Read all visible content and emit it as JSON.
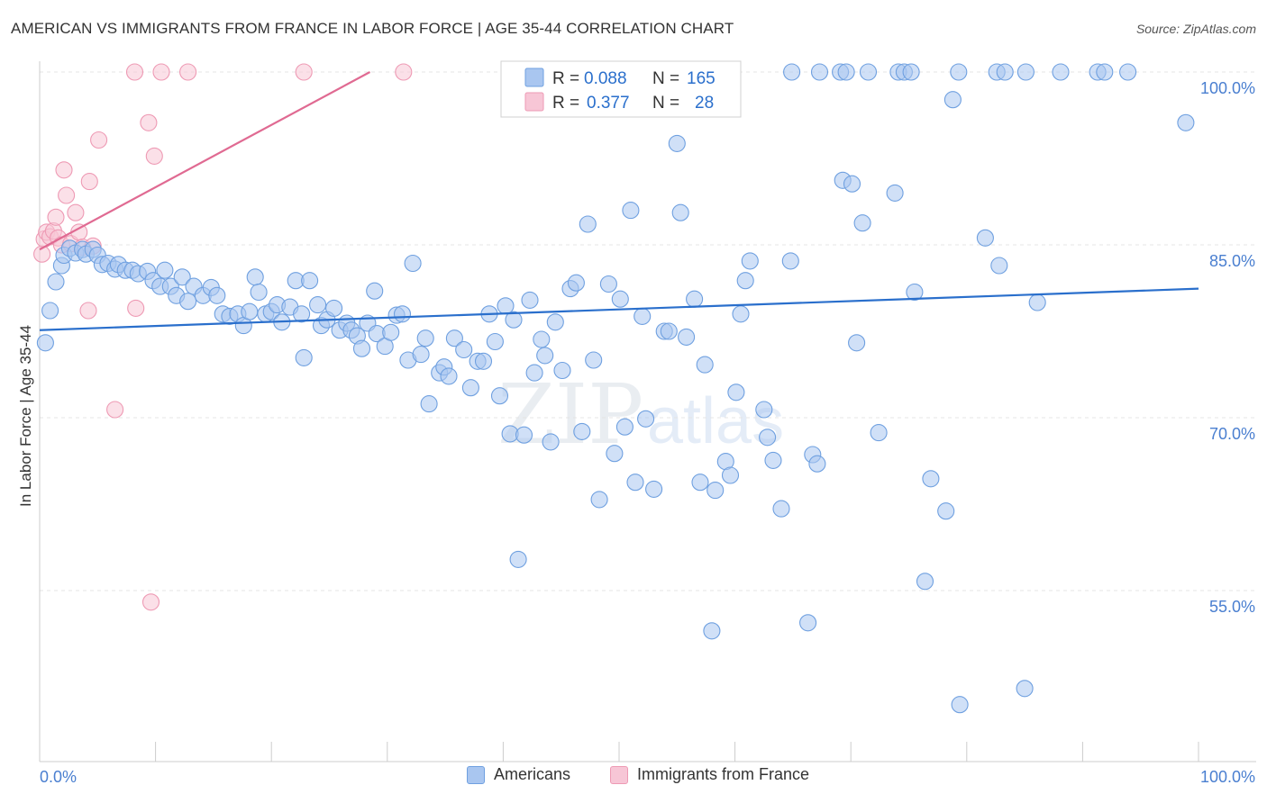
{
  "header": {
    "title": "AMERICAN VS IMMIGRANTS FROM FRANCE IN LABOR FORCE | AGE 35-44 CORRELATION CHART",
    "source": "Source: ZipAtlas.com"
  },
  "watermark": {
    "text_zip": "ZIP",
    "text_atlas": "atlas"
  },
  "legend_box": {
    "rows": [
      {
        "r_label": "R =",
        "r_value": "0.088",
        "n_label": "N =",
        "n_value": "165"
      },
      {
        "r_label": "R =",
        "r_value": "0.377",
        "n_label": "N =",
        "n_value": "28"
      }
    ]
  },
  "chart_data": {
    "type": "scatter",
    "title": "AMERICAN VS IMMIGRANTS FROM FRANCE IN LABOR FORCE | AGE 35-44 CORRELATION CHART",
    "xlabel": "",
    "ylabel": "In Labor Force | Age 35-44",
    "xlim": [
      0,
      100
    ],
    "ylim": [
      39,
      101
    ],
    "x_tick_labels": [
      "0.0%",
      "100.0%"
    ],
    "y_ticks": [
      {
        "value": 100,
        "label": "100.0%"
      },
      {
        "value": 85,
        "label": "85.0%"
      },
      {
        "value": 70,
        "label": "70.0%"
      },
      {
        "value": 55,
        "label": "55.0%"
      }
    ],
    "grid": true,
    "legend_position": "bottom",
    "series": [
      {
        "name": "Americans",
        "color": "#6fa0e0",
        "fill": "#a9c6f0",
        "line_color": "#2a6fcc",
        "R": 0.088,
        "N": 165,
        "trend": [
          [
            0,
            77.6
          ],
          [
            100,
            81.2
          ]
        ],
        "points": [
          [
            0.5,
            76.5
          ],
          [
            0.9,
            79.3
          ],
          [
            1.4,
            81.8
          ],
          [
            1.9,
            83.2
          ],
          [
            2.1,
            84.1
          ],
          [
            2.6,
            84.7
          ],
          [
            3.1,
            84.3
          ],
          [
            3.7,
            84.6
          ],
          [
            4.0,
            84.2
          ],
          [
            4.6,
            84.6
          ],
          [
            5.0,
            84.1
          ],
          [
            5.4,
            83.3
          ],
          [
            5.9,
            83.4
          ],
          [
            6.5,
            82.9
          ],
          [
            6.8,
            83.3
          ],
          [
            7.4,
            82.8
          ],
          [
            8.0,
            82.8
          ],
          [
            8.5,
            82.5
          ],
          [
            9.3,
            82.7
          ],
          [
            9.8,
            81.9
          ],
          [
            10.4,
            81.4
          ],
          [
            10.8,
            82.8
          ],
          [
            11.3,
            81.4
          ],
          [
            11.8,
            80.6
          ],
          [
            12.3,
            82.2
          ],
          [
            12.8,
            80.1
          ],
          [
            13.3,
            81.4
          ],
          [
            14.1,
            80.6
          ],
          [
            14.8,
            81.3
          ],
          [
            15.3,
            80.6
          ],
          [
            15.8,
            79.0
          ],
          [
            16.4,
            78.8
          ],
          [
            17.1,
            79.0
          ],
          [
            17.6,
            78.0
          ],
          [
            18.1,
            79.2
          ],
          [
            18.6,
            82.2
          ],
          [
            18.9,
            80.9
          ],
          [
            19.5,
            79.0
          ],
          [
            20.0,
            79.2
          ],
          [
            20.5,
            79.8
          ],
          [
            20.9,
            78.3
          ],
          [
            21.6,
            79.6
          ],
          [
            22.1,
            81.9
          ],
          [
            22.6,
            79.0
          ],
          [
            22.8,
            75.2
          ],
          [
            23.3,
            81.9
          ],
          [
            24.0,
            79.8
          ],
          [
            24.3,
            78.0
          ],
          [
            24.8,
            78.5
          ],
          [
            25.4,
            79.5
          ],
          [
            25.9,
            77.6
          ],
          [
            26.5,
            78.2
          ],
          [
            26.9,
            77.6
          ],
          [
            27.4,
            77.1
          ],
          [
            27.8,
            76.0
          ],
          [
            28.3,
            78.2
          ],
          [
            28.9,
            81.0
          ],
          [
            29.1,
            77.3
          ],
          [
            29.8,
            76.2
          ],
          [
            30.3,
            77.4
          ],
          [
            30.8,
            78.9
          ],
          [
            31.3,
            79.0
          ],
          [
            31.8,
            75.0
          ],
          [
            32.2,
            83.4
          ],
          [
            32.9,
            75.5
          ],
          [
            33.3,
            76.9
          ],
          [
            33.6,
            71.2
          ],
          [
            34.5,
            73.9
          ],
          [
            34.9,
            74.4
          ],
          [
            35.3,
            73.6
          ],
          [
            35.8,
            76.9
          ],
          [
            36.6,
            75.9
          ],
          [
            37.2,
            72.6
          ],
          [
            37.8,
            74.9
          ],
          [
            38.3,
            74.9
          ],
          [
            38.8,
            79.0
          ],
          [
            39.3,
            76.6
          ],
          [
            39.7,
            71.9
          ],
          [
            40.2,
            79.7
          ],
          [
            40.6,
            68.6
          ],
          [
            40.9,
            78.5
          ],
          [
            41.3,
            57.7
          ],
          [
            41.8,
            68.5
          ],
          [
            42.3,
            80.2
          ],
          [
            42.7,
            73.9
          ],
          [
            43.3,
            76.8
          ],
          [
            43.6,
            75.4
          ],
          [
            44.1,
            67.9
          ],
          [
            44.5,
            78.3
          ],
          [
            45.1,
            74.1
          ],
          [
            45.8,
            81.2
          ],
          [
            46.3,
            81.7
          ],
          [
            46.8,
            68.8
          ],
          [
            47.3,
            86.8
          ],
          [
            47.8,
            75.0
          ],
          [
            48.3,
            62.9
          ],
          [
            49.1,
            81.6
          ],
          [
            49.6,
            66.9
          ],
          [
            50.1,
            80.3
          ],
          [
            50.5,
            69.2
          ],
          [
            51.0,
            88.0
          ],
          [
            51.4,
            64.4
          ],
          [
            52.0,
            78.8
          ],
          [
            52.3,
            69.9
          ],
          [
            53.0,
            63.8
          ],
          [
            53.9,
            77.5
          ],
          [
            54.3,
            77.5
          ],
          [
            55.0,
            93.8
          ],
          [
            55.3,
            87.8
          ],
          [
            55.8,
            77.0
          ],
          [
            56.5,
            80.3
          ],
          [
            57.0,
            64.4
          ],
          [
            57.4,
            74.6
          ],
          [
            58.0,
            51.5
          ],
          [
            58.3,
            63.7
          ],
          [
            59.2,
            66.2
          ],
          [
            59.6,
            65.0
          ],
          [
            60.1,
            72.2
          ],
          [
            60.5,
            79.0
          ],
          [
            60.9,
            81.9
          ],
          [
            61.3,
            83.6
          ],
          [
            62.5,
            70.7
          ],
          [
            62.8,
            68.3
          ],
          [
            63.3,
            66.3
          ],
          [
            64.0,
            62.1
          ],
          [
            64.8,
            83.6
          ],
          [
            66.3,
            52.2
          ],
          [
            66.7,
            66.8
          ],
          [
            67.1,
            66.0
          ],
          [
            69.3,
            90.6
          ],
          [
            70.1,
            90.3
          ],
          [
            70.5,
            76.5
          ],
          [
            71.0,
            86.9
          ],
          [
            72.4,
            68.7
          ],
          [
            73.8,
            89.5
          ],
          [
            75.5,
            80.9
          ],
          [
            76.4,
            55.8
          ],
          [
            76.9,
            64.7
          ],
          [
            78.2,
            61.9
          ],
          [
            78.8,
            97.6
          ],
          [
            79.4,
            45.1
          ],
          [
            81.6,
            85.6
          ],
          [
            82.8,
            83.2
          ],
          [
            85.0,
            46.5
          ],
          [
            86.1,
            80.0
          ],
          [
            98.9,
            95.6
          ],
          [
            64.9,
            100
          ],
          [
            67.3,
            100
          ],
          [
            69.1,
            100
          ],
          [
            69.6,
            100
          ],
          [
            71.5,
            100
          ],
          [
            74.1,
            100
          ],
          [
            74.6,
            100
          ],
          [
            75.2,
            100
          ],
          [
            79.3,
            100
          ],
          [
            82.6,
            100
          ],
          [
            83.3,
            100
          ],
          [
            85.1,
            100
          ],
          [
            88.1,
            100
          ],
          [
            91.3,
            100
          ],
          [
            91.9,
            100
          ],
          [
            93.9,
            100
          ]
        ]
      },
      {
        "name": "Immigrants from France",
        "color": "#ee9ab4",
        "fill": "#f7c6d6",
        "line_color": "#e06a92",
        "R": 0.377,
        "N": 28,
        "trend": [
          [
            0,
            84.6
          ],
          [
            28.5,
            100
          ]
        ],
        "points": [
          [
            0.2,
            84.2
          ],
          [
            0.4,
            85.5
          ],
          [
            0.6,
            86.1
          ],
          [
            0.9,
            85.7
          ],
          [
            1.2,
            86.2
          ],
          [
            1.4,
            87.4
          ],
          [
            1.6,
            85.6
          ],
          [
            1.9,
            85.0
          ],
          [
            2.1,
            91.5
          ],
          [
            2.3,
            89.3
          ],
          [
            2.7,
            85.1
          ],
          [
            3.1,
            87.8
          ],
          [
            3.4,
            86.1
          ],
          [
            3.7,
            84.8
          ],
          [
            4.2,
            79.3
          ],
          [
            4.3,
            90.5
          ],
          [
            4.6,
            84.9
          ],
          [
            5.1,
            94.1
          ],
          [
            6.5,
            70.7
          ],
          [
            8.3,
            79.5
          ],
          [
            9.4,
            95.6
          ],
          [
            9.6,
            54.0
          ],
          [
            9.9,
            92.7
          ],
          [
            8.2,
            100
          ],
          [
            10.5,
            100
          ],
          [
            12.8,
            100
          ],
          [
            22.8,
            100
          ],
          [
            31.4,
            100
          ]
        ]
      }
    ]
  }
}
